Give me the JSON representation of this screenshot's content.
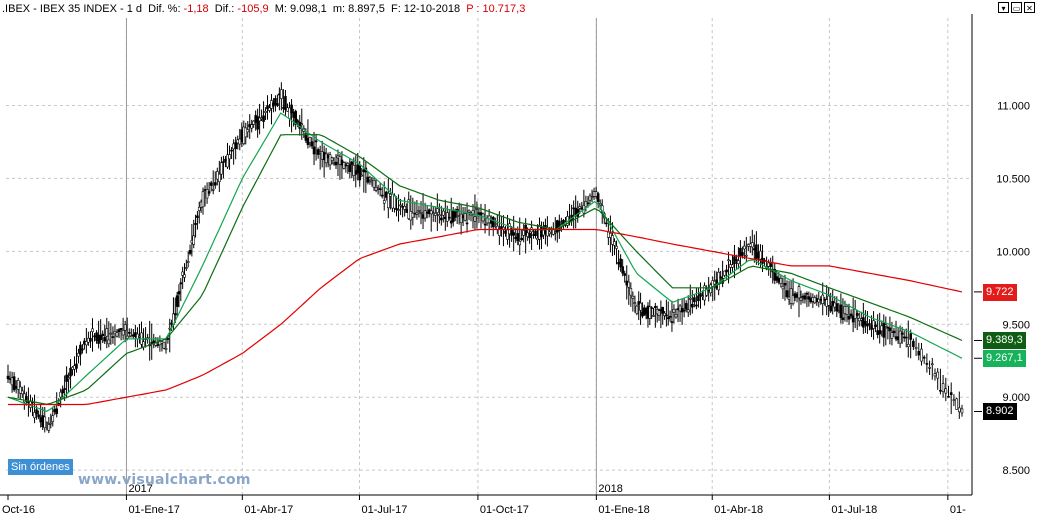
{
  "header": {
    "symbol": ".IBEX - IBEX 35 INDEX -  1 d",
    "dif_pct_label": "Dif. %:",
    "dif_pct_value": "-1,18",
    "dif_label": "Dif.:",
    "dif_value": "-105,9",
    "max_label": "M: 9.098,1",
    "min_label": "m: 8.897,5",
    "date_label": "F: 12-10-2018",
    "prev_label": "P : 10.717,3"
  },
  "tag_box": "Sin órdenes",
  "watermark": "www.visualchart.com",
  "value_tags": [
    {
      "text": "9.722",
      "bg": "#e31b1b",
      "fg": "#ffffff",
      "value": 9722
    },
    {
      "text": "9.389,3",
      "bg": "#0f5d12",
      "fg": "#ffffff",
      "value": 9389
    },
    {
      "text": "9.267,1",
      "bg": "#17b35b",
      "fg": "#ffffff",
      "value": 9267
    },
    {
      "text": "8.902",
      "bg": "#000000",
      "fg": "#ffffff",
      "value": 8902
    }
  ],
  "colors": {
    "ma_slow": "#e30000",
    "ma_mid": "#0b6e12",
    "ma_fast": "#13a650",
    "candles": "#000000",
    "grid": "#c8c8c8"
  },
  "chart_data": {
    "type": "line",
    "title": "IBEX 35 INDEX",
    "y_ticks": [
      "11.000",
      "10.500",
      "10.000",
      "9.500",
      "9.000",
      "8.500"
    ],
    "y_tick_values": [
      11000,
      10500,
      10000,
      9500,
      9000,
      8500
    ],
    "ylim": [
      8350,
      11600
    ],
    "x_ticks": [
      "Oct-16",
      "01-Ene-17",
      "01-Abr-17",
      "01-Jul-17",
      "01-Oct-17",
      "01-Ene-18",
      "01-Abr-18",
      "01-Jul-18",
      "01-"
    ],
    "year_labels": [
      "2017",
      "2018"
    ],
    "x": [
      "2016-10-01",
      "2016-11-01",
      "2016-12-01",
      "2017-01-01",
      "2017-02-01",
      "2017-03-01",
      "2017-04-01",
      "2017-05-01",
      "2017-06-01",
      "2017-07-01",
      "2017-08-01",
      "2017-09-01",
      "2017-10-01",
      "2017-11-01",
      "2017-12-01",
      "2018-01-01",
      "2018-02-01",
      "2018-03-01",
      "2018-04-01",
      "2018-05-01",
      "2018-06-01",
      "2018-07-01",
      "2018-08-01",
      "2018-09-01",
      "2018-10-12"
    ],
    "series": [
      {
        "name": "",
        "kind": "price",
        "values": [
          9150,
          8800,
          9400,
          9450,
          9350,
          10350,
          10800,
          11050,
          10650,
          10550,
          10300,
          10250,
          10250,
          10100,
          10150,
          10400,
          9600,
          9550,
          9750,
          10050,
          9700,
          9650,
          9500,
          9400,
          8902
        ]
      },
      {
        "name": "",
        "kind": "ma_fast",
        "values": [
          9000,
          8900,
          9150,
          9400,
          9400,
          9900,
          10500,
          10950,
          10750,
          10600,
          10350,
          10300,
          10250,
          10150,
          10150,
          10350,
          9850,
          9650,
          9750,
          9950,
          9800,
          9700,
          9550,
          9450,
          9267
        ]
      },
      {
        "name": "",
        "kind": "ma_mid",
        "values": [
          9000,
          8950,
          9050,
          9300,
          9400,
          9700,
          10300,
          10800,
          10800,
          10650,
          10450,
          10350,
          10300,
          10200,
          10150,
          10300,
          10000,
          9750,
          9750,
          9900,
          9850,
          9750,
          9650,
          9550,
          9389
        ]
      },
      {
        "name": "",
        "kind": "ma_slow",
        "values": [
          8950,
          8950,
          8950,
          9000,
          9050,
          9150,
          9300,
          9500,
          9750,
          9950,
          10050,
          10100,
          10150,
          10150,
          10150,
          10150,
          10100,
          10050,
          10000,
          9950,
          9900,
          9900,
          9850,
          9800,
          9722
        ]
      }
    ],
    "grid": true
  }
}
